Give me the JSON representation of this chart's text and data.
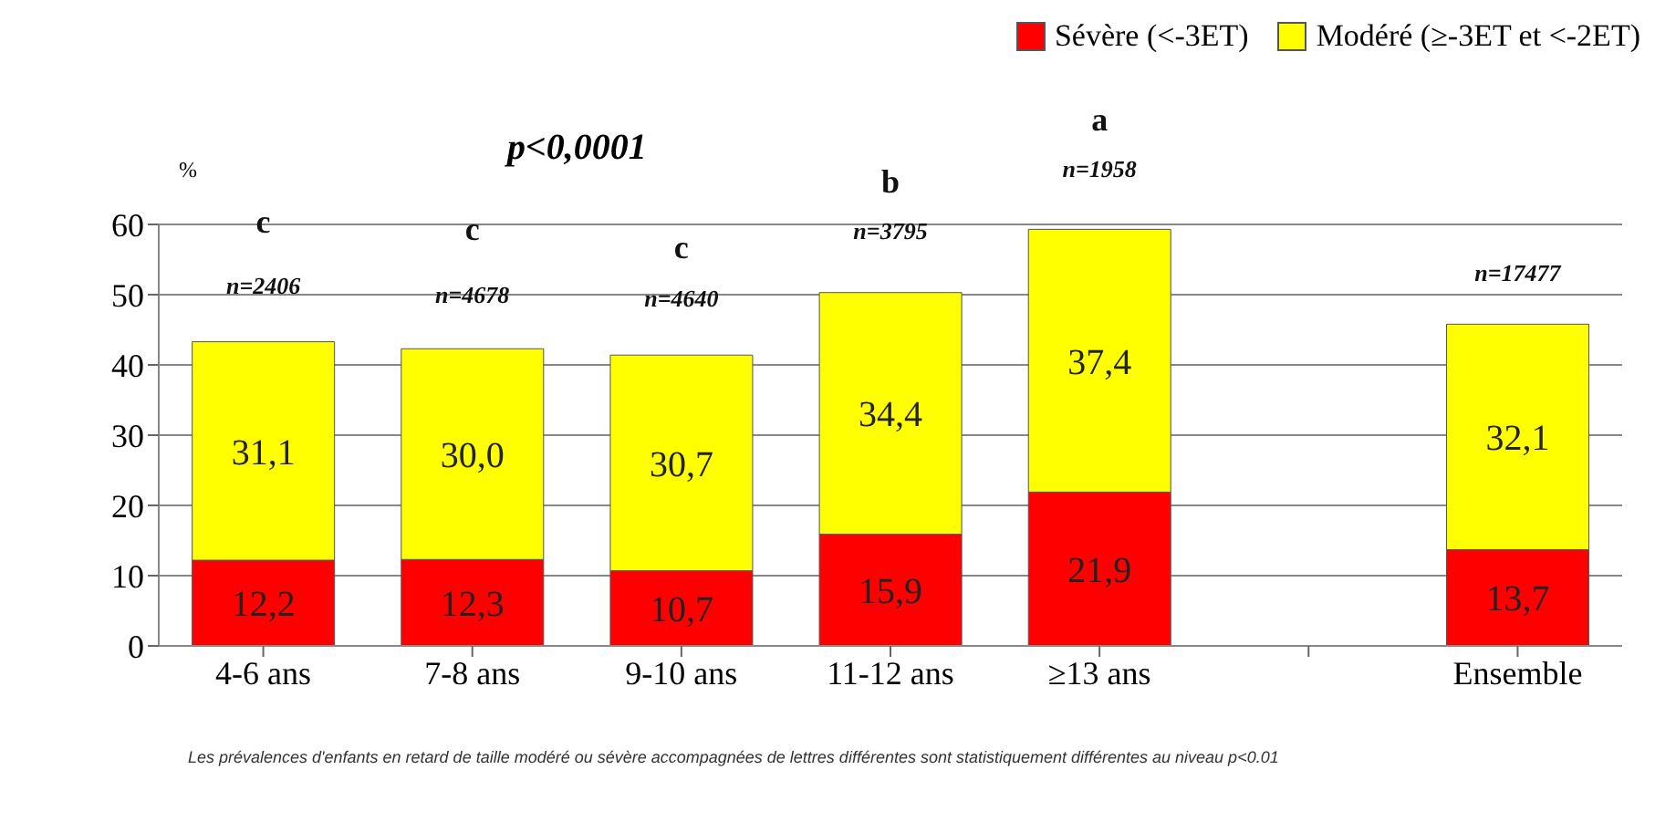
{
  "chart_data": {
    "type": "bar",
    "stacked": true,
    "ylabel": "%",
    "categories": [
      "4-6 ans",
      "7-8 ans",
      "9-10 ans",
      "11-12 ans",
      "≥13 ans",
      null,
      "Ensemble"
    ],
    "series": [
      {
        "name": "Sévère (<-3ET)",
        "color": "#ff0000",
        "values": [
          12.2,
          12.3,
          10.7,
          15.9,
          21.9,
          null,
          13.7
        ],
        "value_labels": [
          "12,2",
          "12,3",
          "10,7",
          "15,9",
          "21,9",
          null,
          "13,7"
        ]
      },
      {
        "name": "Modéré (≥-3ET et <-2ET)",
        "color": "#ffff00",
        "values": [
          31.1,
          30.0,
          30.7,
          34.4,
          37.4,
          null,
          32.1
        ],
        "value_labels": [
          "31,1",
          "30,0",
          "30,7",
          "34,4",
          "37,4",
          null,
          "32,1"
        ]
      }
    ],
    "ylim": [
      0,
      60
    ],
    "yticks": [
      0,
      10,
      20,
      30,
      40,
      50,
      60
    ],
    "grid": "y",
    "legend": "top right",
    "annotations": [
      "p<0,0001",
      "c",
      "n=2406",
      "c",
      "n=4678",
      "c",
      "n=4640",
      "b",
      "n=3795",
      "a",
      "n=1958",
      "n=17477",
      "Les prévalences d'enfants en retard de taille modéré ou sévère accompagnées de lettres différentes sont statistiquement différentes au niveau p<0.01"
    ]
  }
}
